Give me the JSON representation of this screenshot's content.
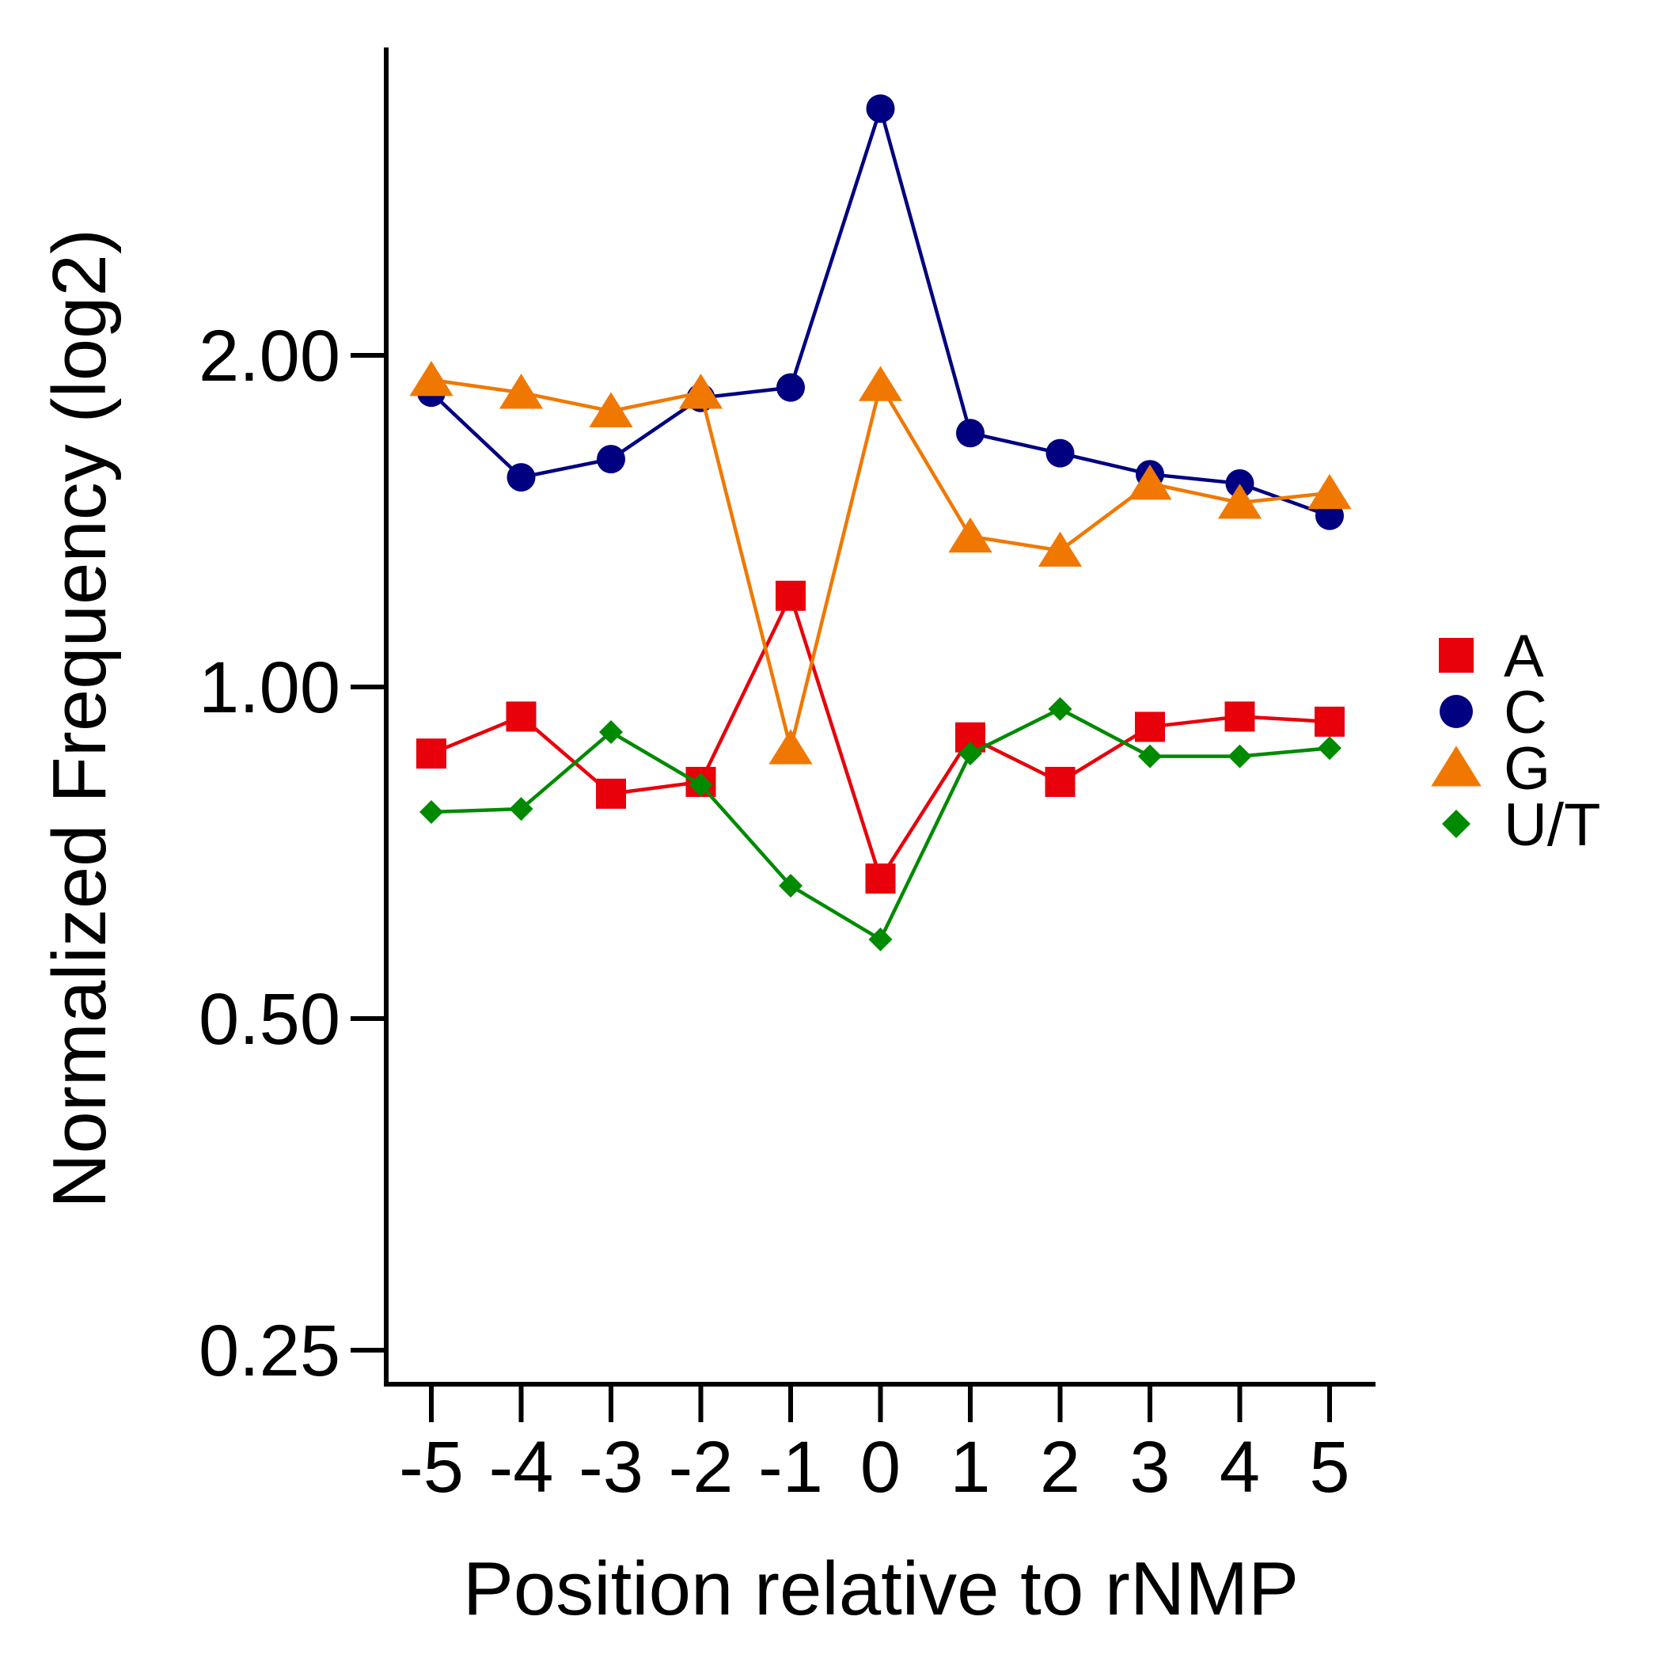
{
  "chart_data": {
    "type": "line",
    "title": "",
    "xlabel": "Position relative to rNMP",
    "ylabel": "Normalized Frequency (log2)",
    "y_scale": "log2",
    "x": [
      -5,
      -4,
      -3,
      -2,
      -1,
      0,
      1,
      2,
      3,
      4,
      5
    ],
    "x_tick_labels": [
      "-5",
      "-4",
      "-3",
      "-2",
      "-1",
      "0",
      "1",
      "2",
      "3",
      "4",
      "5"
    ],
    "y_ticks": [
      0.25,
      0.5,
      1.0,
      2.0
    ],
    "y_tick_labels": [
      "0.25",
      "0.50",
      "1.00",
      "2.00"
    ],
    "ylim": [
      0.24,
      3.6
    ],
    "grid": false,
    "legend_position": "right",
    "series": [
      {
        "name": "A",
        "color": "#e8000b",
        "marker": "square",
        "values": [
          0.87,
          0.94,
          0.8,
          0.82,
          1.21,
          0.67,
          0.9,
          0.82,
          0.92,
          0.94,
          0.93
        ]
      },
      {
        "name": "C",
        "color": "#000080",
        "marker": "circle",
        "values": [
          1.85,
          1.55,
          1.61,
          1.83,
          1.87,
          3.35,
          1.7,
          1.63,
          1.56,
          1.53,
          1.43
        ]
      },
      {
        "name": "G",
        "color": "#f07800",
        "marker": "triangle",
        "values": [
          1.9,
          1.85,
          1.78,
          1.85,
          0.88,
          1.88,
          1.37,
          1.33,
          1.53,
          1.47,
          1.5
        ]
      },
      {
        "name": "U/T",
        "color": "#008a00",
        "marker": "diamond",
        "values": [
          0.77,
          0.775,
          0.91,
          0.815,
          0.66,
          0.59,
          0.87,
          0.955,
          0.865,
          0.865,
          0.88
        ]
      }
    ]
  }
}
